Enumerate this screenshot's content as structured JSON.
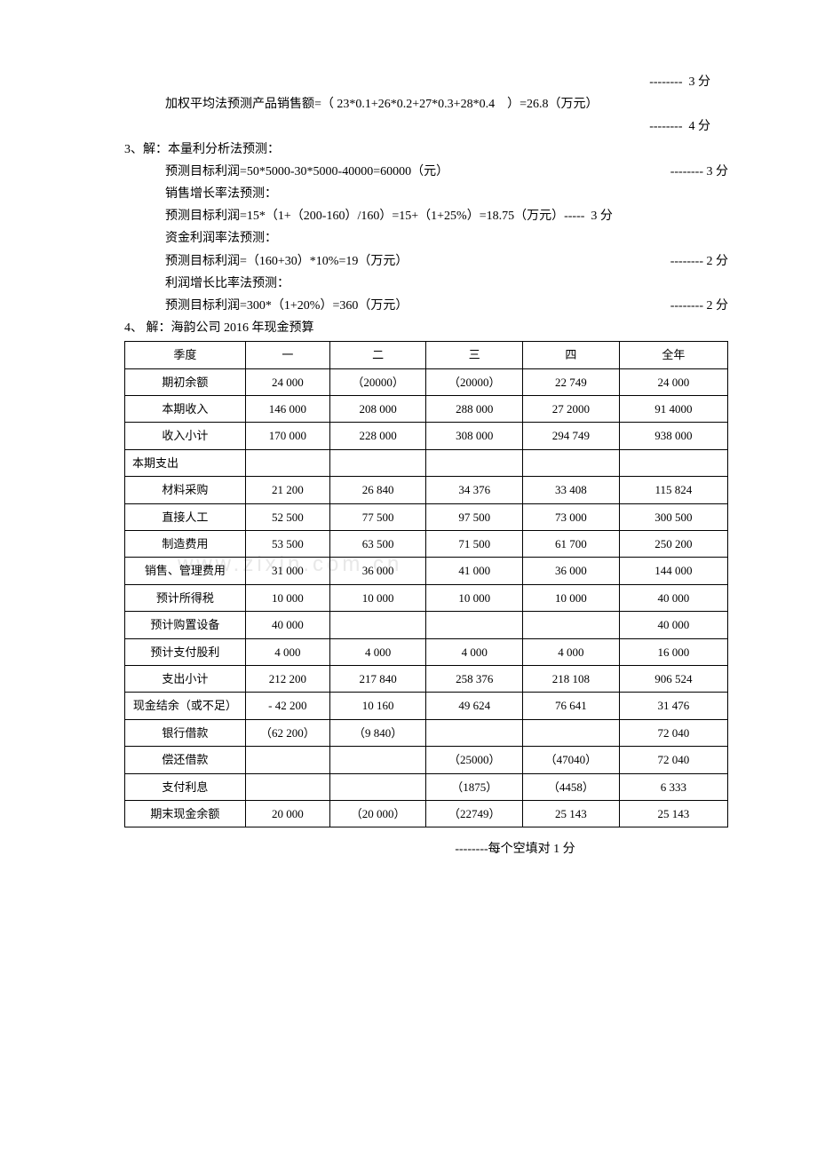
{
  "lines": {
    "l1": "--------  3 分",
    "l2": "加权平均法预测产品销售额=（ 23*0.1+26*0.2+27*0.3+28*0.4    ）=26.8（万元）",
    "l3": "--------  4 分",
    "l4": "3、解：本量利分析法预测：",
    "l5a": "预测目标利润=50*5000-30*5000-40000=60000（元）",
    "l5b": "--------      3 分",
    "l6": "销售增长率法预测：",
    "l7": "预测目标利润=15*（1+（200-160）/160）=15+（1+25%）=18.75（万元）-----  3 分",
    "l8": "资金利润率法预测：",
    "l9a": "预测目标利润=（160+30）*10%=19（万元）",
    "l9b": "--------      2 分",
    "l10": "利润增长比率法预测：",
    "l11a": "预测目标利润=300*（1+20%）=360（万元）",
    "l11b": "--------      2 分",
    "l12": "4、 解：海韵公司 2016 年现金预算",
    "footer": "--------每个空填对 1 分"
  },
  "table": {
    "headers": [
      "季度",
      "一",
      "二",
      "三",
      "四",
      "全年"
    ],
    "rows": [
      {
        "label": "期初余额",
        "cells": [
          "24 000",
          "（20000）",
          "（20000）",
          "22 749",
          "24 000"
        ]
      },
      {
        "label": "本期收入",
        "cells": [
          "146 000",
          "208 000",
          "288 000",
          "27 2000",
          "91 4000"
        ]
      },
      {
        "label": "收入小计",
        "cells": [
          "170 000",
          "228 000",
          "308 000",
          "294 749",
          "938 000"
        ]
      },
      {
        "label": "本期支出",
        "cells": [
          "",
          "",
          "",
          "",
          ""
        ],
        "leftAlign": true
      },
      {
        "label": "材料采购",
        "cells": [
          "21 200",
          "26 840",
          "34 376",
          "33 408",
          "115 824"
        ]
      },
      {
        "label": "直接人工",
        "cells": [
          "52 500",
          "77 500",
          "97 500",
          "73 000",
          "300 500"
        ]
      },
      {
        "label": "制造费用",
        "cells": [
          "53 500",
          "63 500",
          "71 500",
          "61 700",
          "250 200"
        ]
      },
      {
        "label": "销售、管理费用",
        "cells": [
          "31 000",
          "36 000",
          "41 000",
          "36 000",
          "144 000"
        ]
      },
      {
        "label": "预计所得税",
        "cells": [
          "10 000",
          "10 000",
          "10 000",
          "10 000",
          "40 000"
        ]
      },
      {
        "label": "预计购置设备",
        "cells": [
          "40 000",
          "",
          "",
          "",
          "40 000"
        ]
      },
      {
        "label": "预计支付股利",
        "cells": [
          "4 000",
          "4 000",
          "4 000",
          "4 000",
          "16 000"
        ]
      },
      {
        "label": "支出小计",
        "cells": [
          "212 200",
          "217 840",
          "258 376",
          "218 108",
          "906 524"
        ]
      },
      {
        "label": "现金结余（或不足）",
        "cells": [
          "- 42 200",
          "10 160",
          "49 624",
          "76 641",
          "31 476"
        ]
      },
      {
        "label": "银行借款",
        "cells": [
          "（62 200）",
          "（9 840）",
          "",
          "",
          "72 040"
        ]
      },
      {
        "label": "偿还借款",
        "cells": [
          "",
          "",
          "（25000）",
          "（47040）",
          "72 040"
        ]
      },
      {
        "label": "支付利息",
        "cells": [
          "",
          "",
          "（1875）",
          "（4458）",
          "6 333"
        ]
      },
      {
        "label": "期末现金余额",
        "cells": [
          "20 000",
          "（20 000）",
          "（22749）",
          "25 143",
          "25 143"
        ]
      }
    ]
  },
  "watermark": "www.zixin.com.cn",
  "colWidths": [
    "20%",
    "14%",
    "16%",
    "16%",
    "16%",
    "18%"
  ]
}
